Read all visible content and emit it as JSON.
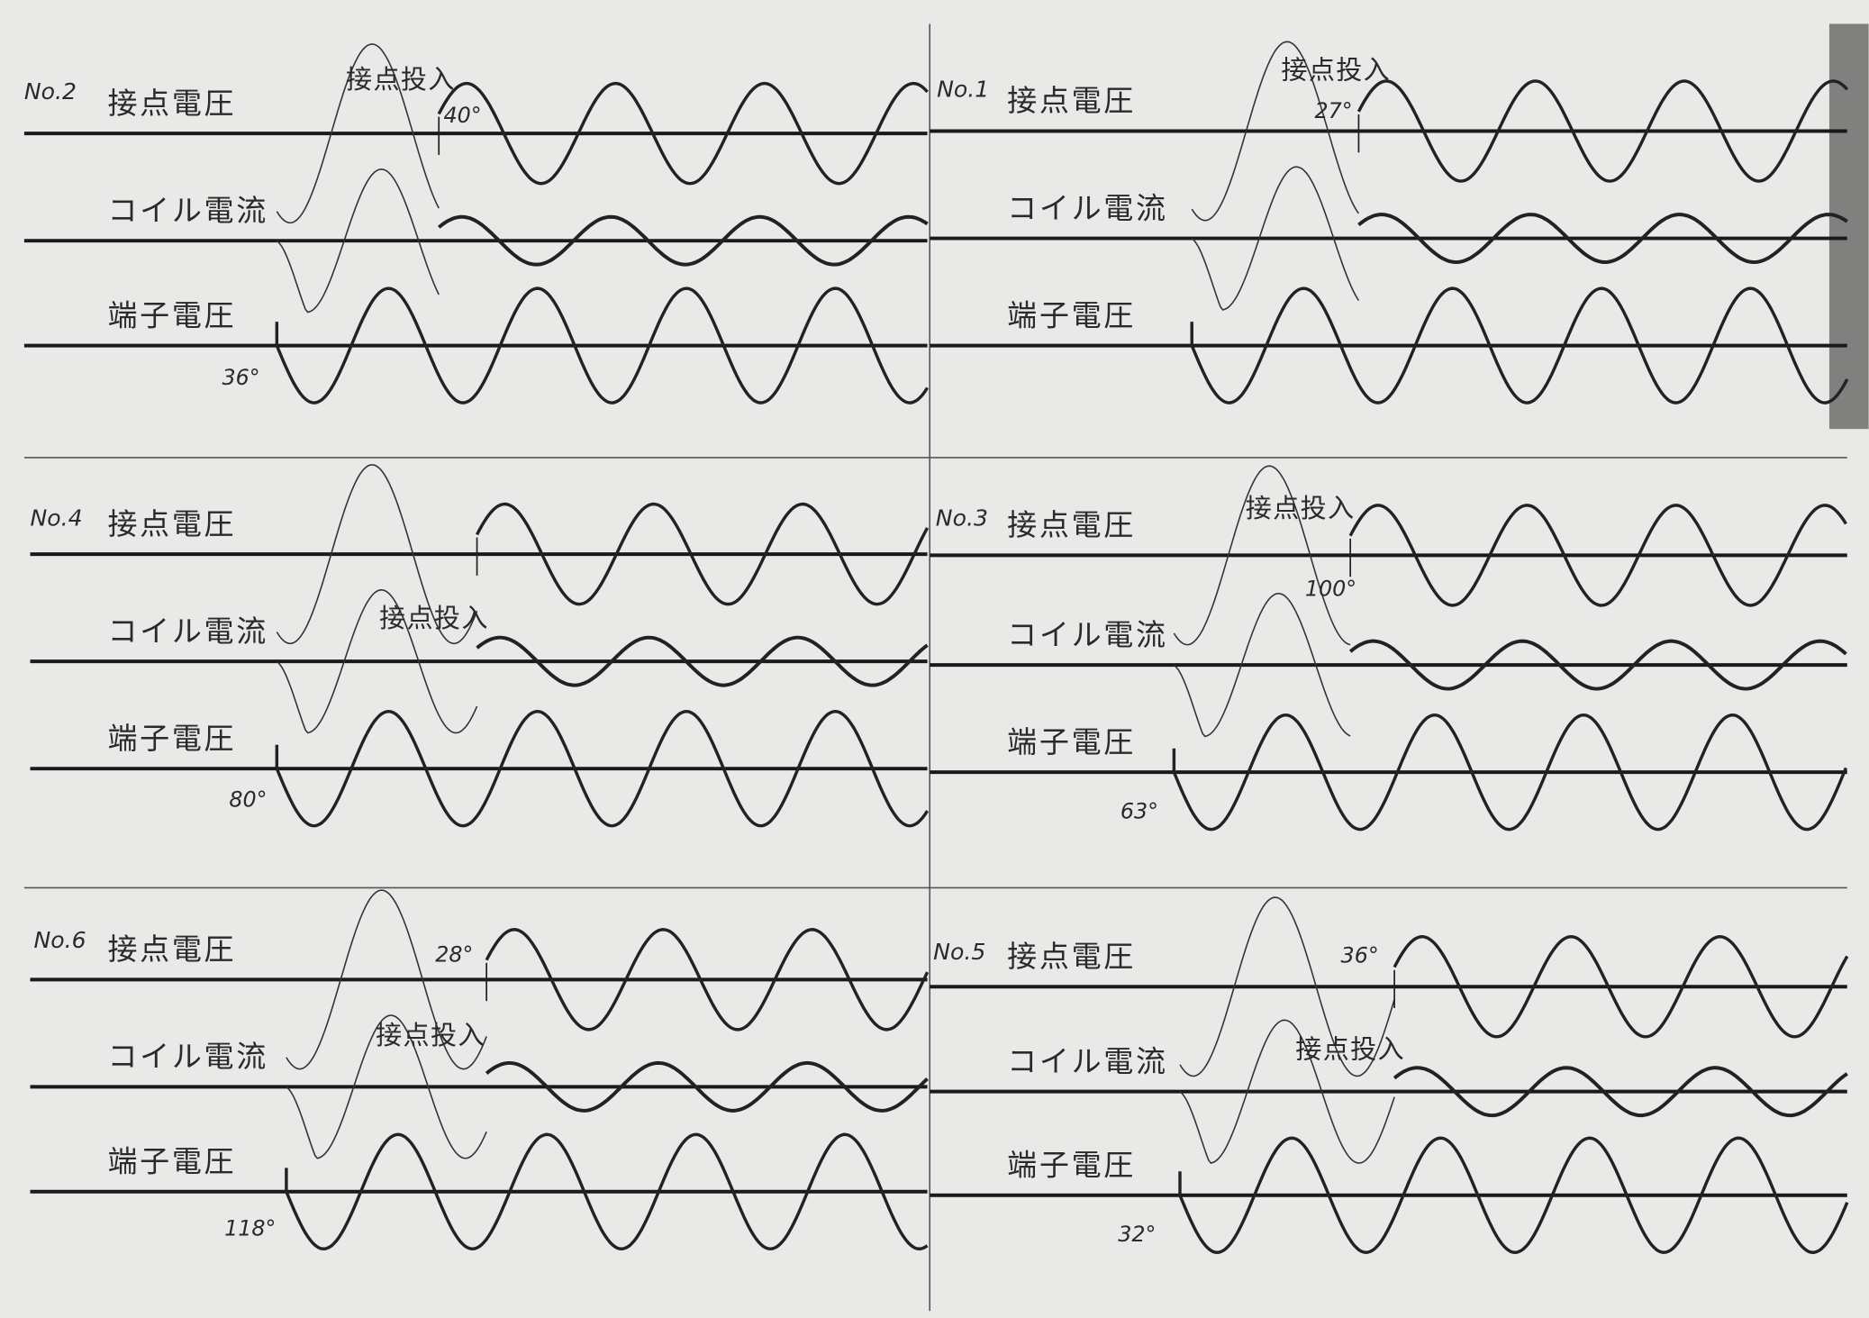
{
  "panels": [
    {
      "id": "No.2",
      "traces": [
        "接点電圧",
        "コイル電流",
        "端子電圧"
      ],
      "switch_label": "接点投入",
      "angles": [
        "40°",
        "36°"
      ]
    },
    {
      "id": "No.1",
      "traces": [
        "接点電圧",
        "コイル電流",
        "端子電圧"
      ],
      "switch_label": "接点投入",
      "angles": [
        "27°"
      ]
    },
    {
      "id": "No.4",
      "traces": [
        "接点電圧",
        "コイル電流",
        "端子電圧"
      ],
      "switch_label": "接点投入",
      "angles": [
        "80°"
      ]
    },
    {
      "id": "No.3",
      "traces": [
        "接点電圧",
        "コイル電流",
        "端子電圧"
      ],
      "switch_label": "接点投入",
      "angles": [
        "100°",
        "63°"
      ]
    },
    {
      "id": "No.6",
      "traces": [
        "接点電圧",
        "コイル電流",
        "端子電圧"
      ],
      "switch_label": "接点投入",
      "angles": [
        "28°",
        "118°"
      ]
    },
    {
      "id": "No.5",
      "traces": [
        "接点電圧",
        "コイル電流",
        "端子電圧"
      ],
      "switch_label": "接点投入",
      "angles": [
        "36°",
        "32°"
      ]
    }
  ]
}
